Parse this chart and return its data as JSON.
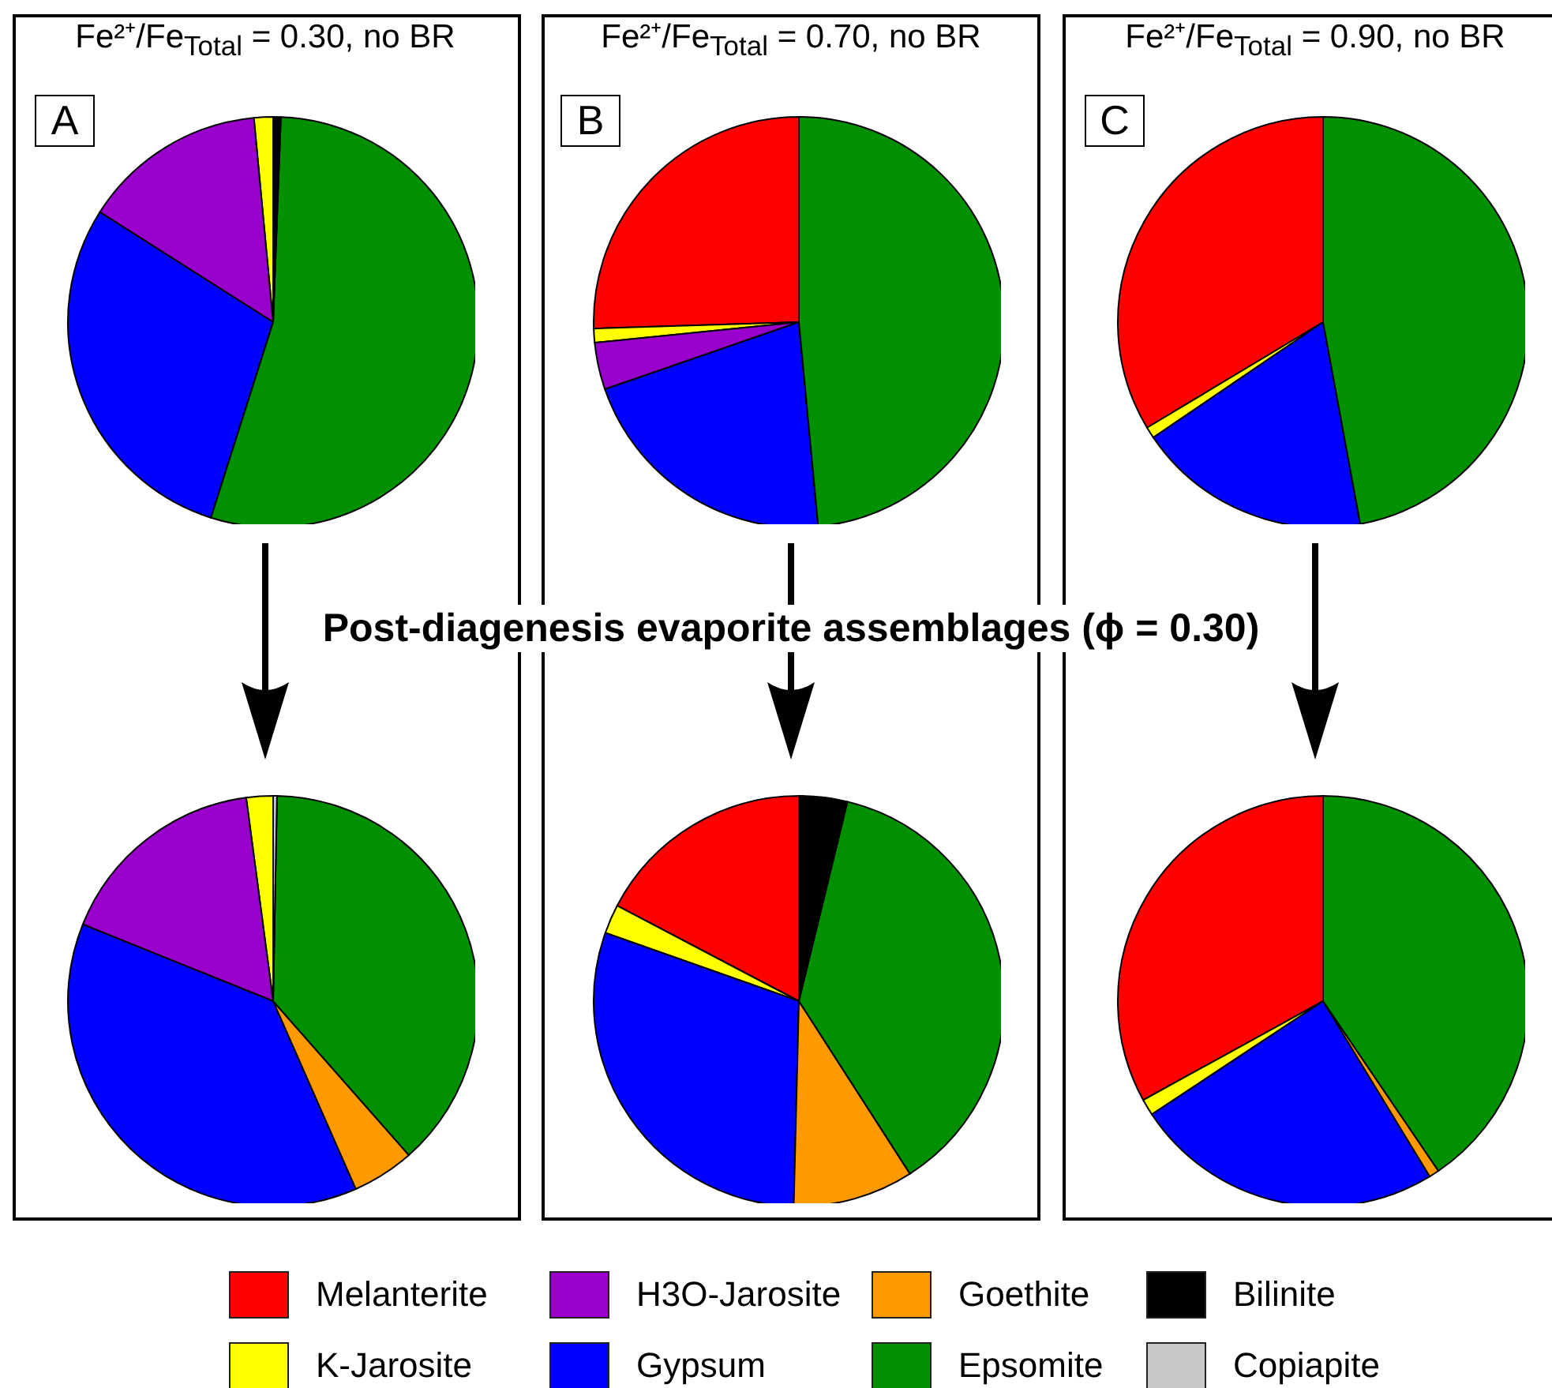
{
  "chart_data": [
    {
      "type": "pie",
      "title": "Fe²⁺/Fe$_{Total}$ = 0.30, no BR",
      "annotations": [
        "A"
      ],
      "categories": [
        "Melanterite",
        "K-Jarosite",
        "H3O-Jarosite",
        "Gypsum",
        "Goethite",
        "Epsomite",
        "Bilinite",
        "Copiapite"
      ],
      "values": [
        0,
        1.5,
        14.5,
        29.1,
        0,
        54.3,
        0.6,
        0
      ],
      "colors": [
        "#ff0000",
        "#ffff00",
        "#9900cc",
        "#0000ff",
        "#ff9900",
        "#009000",
        "#000000",
        "#c8c8c8"
      ],
      "legend": "bottom"
    },
    {
      "type": "pie",
      "title": "Fe²⁺/Fe$_{Total}$ = 0.70, no BR",
      "annotations": [
        "B"
      ],
      "categories": [
        null,
        null,
        null,
        null,
        null,
        null,
        null,
        null
      ],
      "values": [
        25.5,
        1.1,
        3.7,
        21.2,
        0,
        48.5,
        0,
        0
      ],
      "colors": [
        "#ff0000",
        "#ffff00",
        "#9900cc",
        "#0000ff",
        "#ff9900",
        "#009000",
        "#000000",
        "#c8c8c8"
      ]
    },
    {
      "type": "pie",
      "title": "Fe²⁺/Fe$_{Total}$ = 0.90, no BR",
      "annotations": [
        "C"
      ],
      "categories": [
        null,
        null,
        null,
        null,
        null,
        null,
        null,
        null
      ],
      "values": [
        33.6,
        0.9,
        0,
        18.4,
        0,
        47.1,
        0,
        0
      ],
      "colors": [
        "#ff0000",
        "#ffff00",
        "#9900cc",
        "#0000ff",
        "#ff9900",
        "#009000",
        "#000000",
        "#c8c8c8"
      ]
    },
    {
      "type": "pie",
      "categories": [
        null,
        null,
        null,
        null,
        null,
        null,
        null,
        null
      ],
      "values": [
        0,
        2.1,
        16.8,
        37.7,
        4.9,
        38.2,
        0,
        0.3
      ],
      "colors": [
        "#ff0000",
        "#ffff00",
        "#9900cc",
        "#0000ff",
        "#ff9900",
        "#009000",
        "#000000",
        "#c8c8c8"
      ]
    },
    {
      "type": "pie",
      "title": "Post-diagenesis evaporite assemblages (ϕ = 0.30)",
      "categories": [
        null,
        null,
        null,
        null,
        null,
        null,
        null,
        null
      ],
      "values": [
        17.3,
        2.3,
        0,
        30.0,
        9.5,
        37.1,
        3.8,
        0
      ],
      "colors": [
        "#ff0000",
        "#ffff00",
        "#9900cc",
        "#0000ff",
        "#ff9900",
        "#009000",
        "#000000",
        "#c8c8c8"
      ]
    },
    {
      "type": "pie",
      "categories": [
        null,
        null,
        null,
        null,
        null,
        null,
        null,
        null
      ],
      "values": [
        33.0,
        1.3,
        0,
        24.4,
        0.8,
        40.5,
        0,
        0
      ],
      "colors": [
        "#ff0000",
        "#ffff00",
        "#9900cc",
        "#0000ff",
        "#ff9900",
        "#009000",
        "#000000",
        "#c8c8c8"
      ]
    }
  ]
}
